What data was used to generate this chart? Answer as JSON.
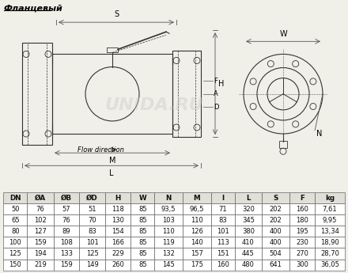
{
  "title": "Фланцевый",
  "table_headers": [
    "DN",
    "ØA",
    "ØB",
    "ØD",
    "H",
    "W",
    "N",
    "M",
    "l",
    "L",
    "S",
    "F",
    "kg"
  ],
  "table_data": [
    [
      "50",
      "76",
      "57",
      "51",
      "118",
      "85",
      "93,5",
      "96,5",
      "71",
      "320",
      "202",
      "160",
      "7,61"
    ],
    [
      "65",
      "102",
      "76",
      "70",
      "130",
      "85",
      "103",
      "110",
      "83",
      "345",
      "202",
      "180",
      "9,95"
    ],
    [
      "80",
      "127",
      "89",
      "83",
      "154",
      "85",
      "110",
      "126",
      "101",
      "380",
      "400",
      "195",
      "13,34"
    ],
    [
      "100",
      "159",
      "108",
      "101",
      "166",
      "85",
      "119",
      "140",
      "113",
      "410",
      "400",
      "230",
      "18,90"
    ],
    [
      "125",
      "194",
      "133",
      "125",
      "229",
      "85",
      "132",
      "157",
      "151",
      "445",
      "504",
      "270",
      "28,70"
    ],
    [
      "150",
      "219",
      "159",
      "149",
      "260",
      "85",
      "145",
      "175",
      "160",
      "480",
      "641",
      "300",
      "36,05"
    ]
  ],
  "bg_color": "#f0efe8",
  "table_header_color": "#e0dfd8",
  "watermark": "UNIDA.RU",
  "dim_color": "#555555",
  "dark_color": "#333333"
}
